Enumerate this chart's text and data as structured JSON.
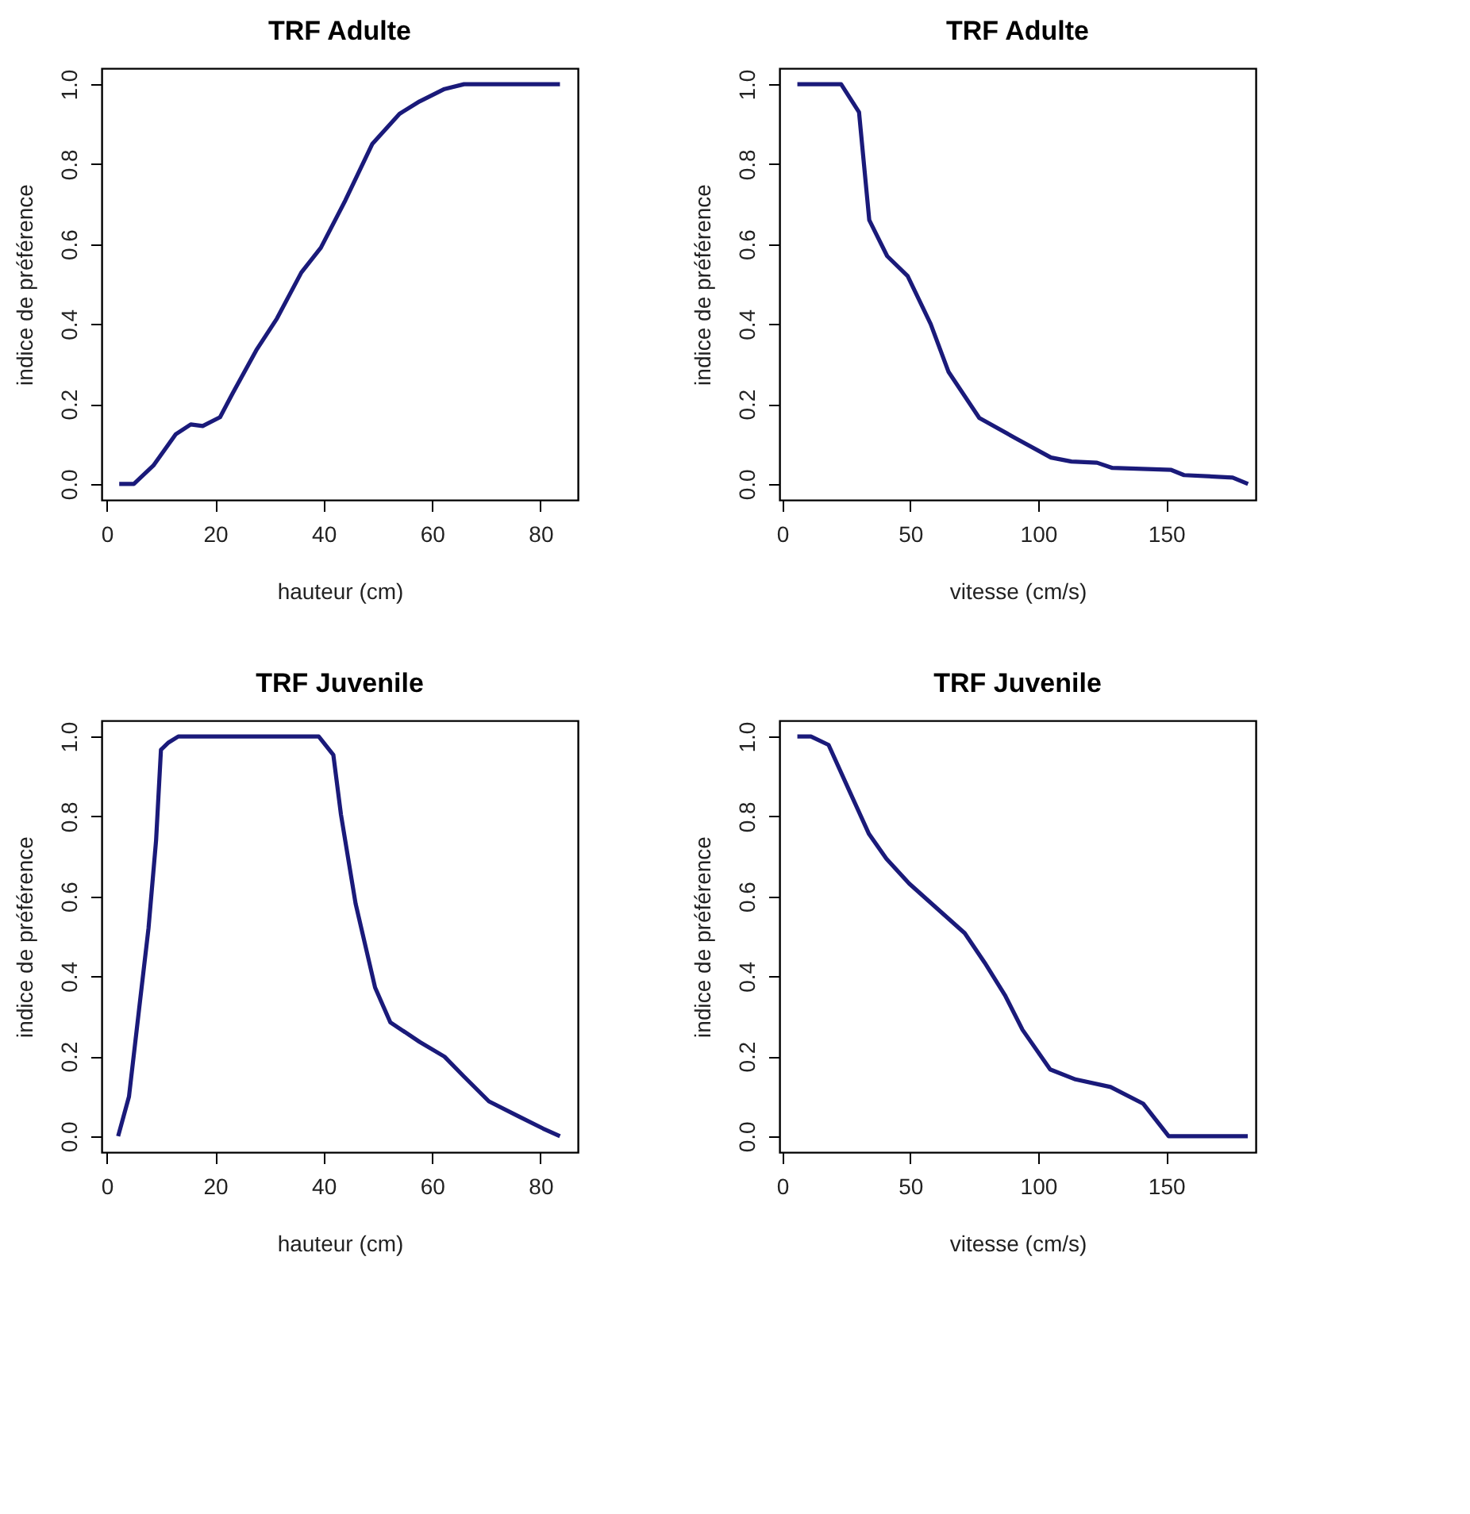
{
  "chart_data": [
    {
      "type": "line",
      "title": "TRF Adulte",
      "xlabel": "hauteur (cm)",
      "ylabel": "indice de préférence",
      "color": "#1a1a7a",
      "x": [
        2.3,
        5,
        8.6,
        12.7,
        15.5,
        17.7,
        20.9,
        23.2,
        27.7,
        31.4,
        35.9,
        39.5,
        44,
        49,
        54,
        57.7,
        62.3,
        65.9,
        83.6
      ],
      "values": [
        0,
        0,
        0.046,
        0.124,
        0.149,
        0.145,
        0.167,
        0.226,
        0.337,
        0.414,
        0.529,
        0.591,
        0.709,
        0.851,
        0.926,
        0.957,
        0.988,
        1.0,
        1.0
      ],
      "xlim": [
        -0.95,
        86.9
      ],
      "ylim": [
        -0.04,
        1.04
      ],
      "xticks": [
        0,
        20,
        40,
        60,
        80
      ],
      "line_style": "solid",
      "yticks": [
        {
          "value": 0,
          "label": "0.0"
        },
        {
          "value": 0.2,
          "label": "0.2"
        },
        {
          "value": 0.4,
          "label": "0.4"
        },
        {
          "value": 0.6,
          "label": "0.6"
        },
        {
          "value": 0.8,
          "label": "0.8"
        },
        {
          "value": 1,
          "label": "1.0"
        }
      ]
    },
    {
      "type": "line",
      "title": "TRF Adulte",
      "xlabel": "vitesse (cm/s)",
      "ylabel": "indice de préférence",
      "color": "#1a1a7a",
      "x": [
        5.9,
        23,
        30,
        34,
        41,
        49,
        58,
        65,
        77,
        91,
        105,
        113,
        123,
        129,
        152,
        157,
        176,
        182
      ],
      "values": [
        1.0,
        1.0,
        0.93,
        0.66,
        0.57,
        0.52,
        0.4,
        0.28,
        0.165,
        0.115,
        0.066,
        0.056,
        0.053,
        0.04,
        0.035,
        0.022,
        0.016,
        0.0
      ],
      "xlim": [
        -1.1,
        185
      ],
      "ylim": [
        -0.04,
        1.04
      ],
      "xticks": [
        0,
        50,
        100,
        150
      ],
      "line_style": "solid",
      "yticks": [
        {
          "value": 0,
          "label": "0.0"
        },
        {
          "value": 0.2,
          "label": "0.2"
        },
        {
          "value": 0.4,
          "label": "0.4"
        },
        {
          "value": 0.6,
          "label": "0.6"
        },
        {
          "value": 0.8,
          "label": "0.8"
        },
        {
          "value": 1,
          "label": "1.0"
        }
      ]
    },
    {
      "type": "line",
      "title": "TRF Juvenile",
      "xlabel": "hauteur (cm)",
      "ylabel": "indice de préférence",
      "color": "#1a1a7a",
      "x": [
        2.1,
        4.1,
        5.9,
        7.7,
        9.1,
        10,
        11.4,
        13.2,
        39.1,
        41.8,
        43.2,
        45.9,
        49.5,
        52.3,
        57.7,
        62.3,
        65.9,
        70.5,
        75.9,
        80.5,
        83.6
      ],
      "values": [
        0,
        0.099,
        0.31,
        0.52,
        0.74,
        0.967,
        0.985,
        1.0,
        1.0,
        0.954,
        0.805,
        0.582,
        0.372,
        0.285,
        0.236,
        0.199,
        0.149,
        0.087,
        0.05,
        0.019,
        0
      ],
      "xlim": [
        -0.95,
        86.9
      ],
      "ylim": [
        -0.04,
        1.04
      ],
      "xticks": [
        0,
        20,
        40,
        60,
        80
      ],
      "line_style": "solid",
      "yticks": [
        {
          "value": 0,
          "label": "0.0"
        },
        {
          "value": 0.2,
          "label": "0.2"
        },
        {
          "value": 0.4,
          "label": "0.4"
        },
        {
          "value": 0.6,
          "label": "0.6"
        },
        {
          "value": 0.8,
          "label": "0.8"
        },
        {
          "value": 1,
          "label": "1.0"
        }
      ]
    },
    {
      "type": "line",
      "title": "TRF Juvenile",
      "xlabel": "vitesse (cm/s)",
      "ylabel": "indice de préférence",
      "color": "#1a1a7a",
      "x": [
        5.9,
        11.2,
        18.1,
        26,
        33.9,
        40.7,
        49.6,
        59.4,
        71.3,
        79.1,
        87,
        93.9,
        104.7,
        114.6,
        128.3,
        141.1,
        151,
        181.9
      ],
      "values": [
        1.0,
        1.0,
        0.979,
        0.867,
        0.756,
        0.694,
        0.632,
        0.576,
        0.508,
        0.434,
        0.353,
        0.266,
        0.167,
        0.142,
        0.123,
        0.081,
        0,
        0
      ],
      "xlim": [
        -1.1,
        185
      ],
      "ylim": [
        -0.04,
        1.04
      ],
      "xticks": [
        0,
        50,
        100,
        150
      ],
      "line_style": "solid",
      "yticks": [
        {
          "value": 0,
          "label": "0.0"
        },
        {
          "value": 0.2,
          "label": "0.2"
        },
        {
          "value": 0.4,
          "label": "0.4"
        },
        {
          "value": 0.6,
          "label": "0.6"
        },
        {
          "value": 0.8,
          "label": "0.8"
        },
        {
          "value": 1,
          "label": "1.0"
        }
      ]
    }
  ]
}
